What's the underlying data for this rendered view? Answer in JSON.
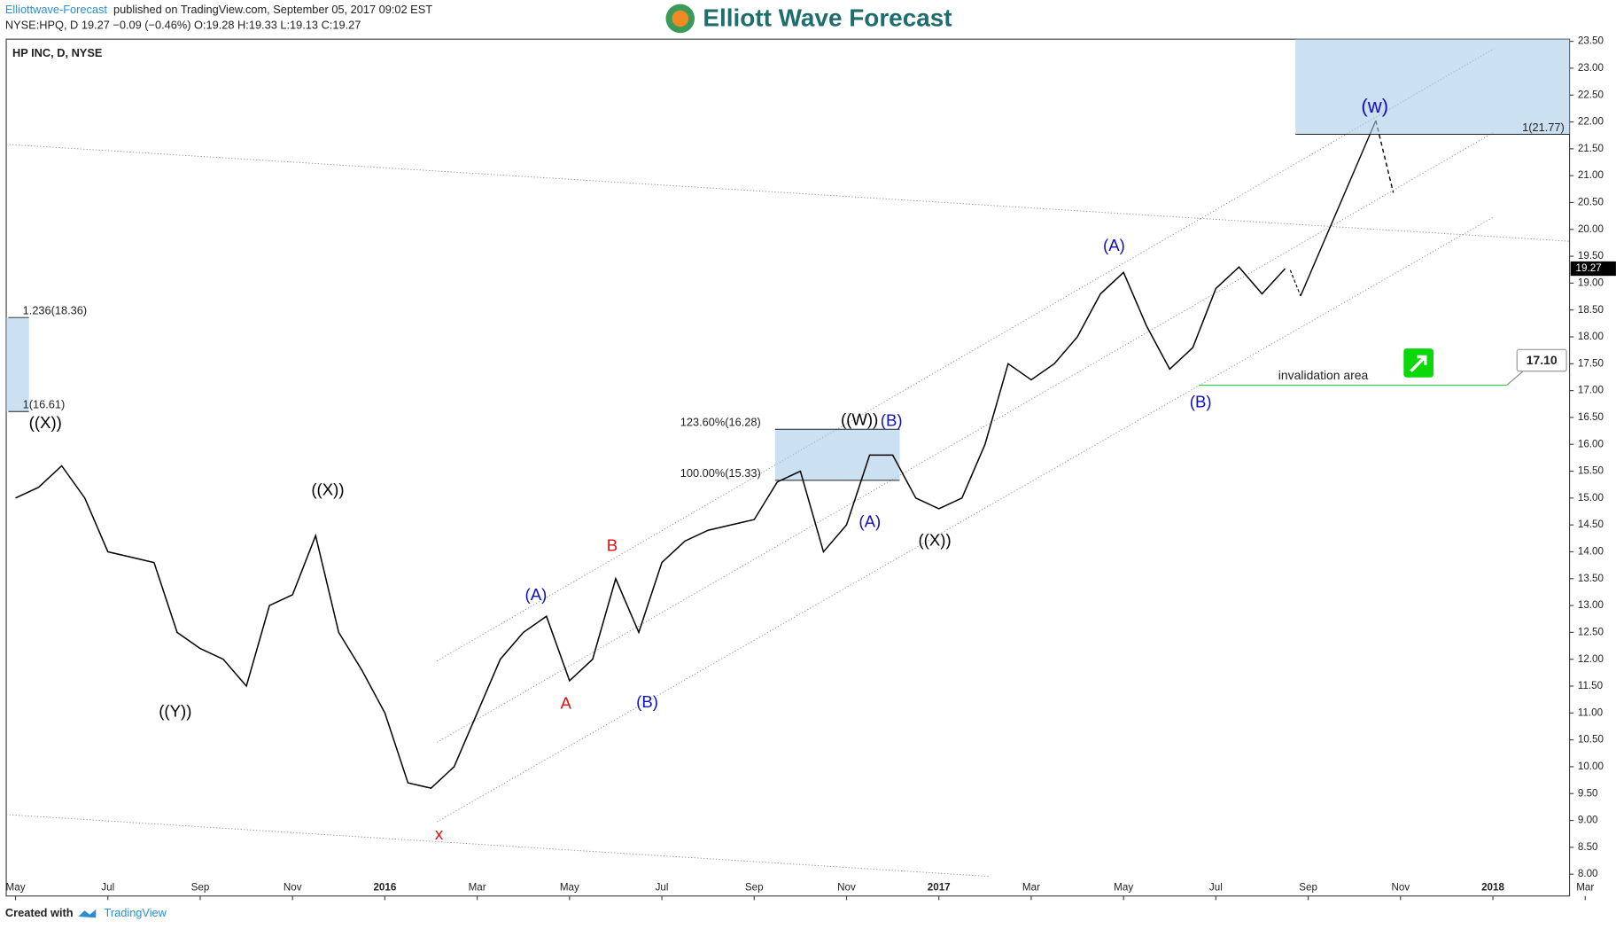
{
  "header": {
    "publisher": "Elliottwave-Forecast",
    "published": "published on TradingView.com, September 05, 2017 09:02 EST",
    "quote": "NYSE:HPQ, D  19.27  −0.09 (−0.46%)  O:19.28  H:19.33  L:19.13  C:19.27",
    "logo": "Elliott Wave Forecast"
  },
  "footer": {
    "created": "Created with",
    "brand": "TradingView"
  },
  "chart_data": {
    "type": "line",
    "title": "HP INC, D, NYSE",
    "categories": [
      "May",
      null,
      null,
      null,
      "Jul",
      null,
      null,
      null,
      "Sep",
      null,
      null,
      null,
      "Nov",
      null,
      null,
      null,
      "2016",
      null,
      null,
      null,
      "Mar",
      null,
      null,
      null,
      "May",
      null,
      null,
      null,
      "Jul",
      null,
      null,
      null,
      "Sep",
      null,
      null,
      null,
      "Nov",
      null,
      null,
      null,
      "2017",
      null,
      null,
      null,
      "Mar",
      null,
      null,
      null,
      "May",
      null,
      null,
      null,
      "Jul",
      null,
      null,
      null,
      "Sep",
      null,
      null,
      null,
      "Nov",
      null,
      null,
      null,
      "2018",
      null,
      null,
      null,
      "Mar",
      null
    ],
    "series": [
      {
        "name": "HPQ",
        "color": "#000000",
        "values": [
          15.0,
          15.2,
          15.6,
          15.0,
          14.0,
          13.9,
          13.8,
          12.5,
          12.2,
          12.0,
          11.5,
          13.0,
          13.2,
          14.3,
          12.5,
          11.8,
          11.0,
          9.7,
          9.6,
          10.0,
          11.0,
          12.0,
          12.5,
          12.8,
          11.6,
          12.0,
          13.5,
          12.5,
          13.8,
          14.2,
          14.4,
          14.5,
          14.6,
          15.3,
          15.5,
          14.0,
          14.5,
          15.8,
          15.8,
          15.0,
          14.8,
          15.0,
          16.0,
          17.5,
          17.2,
          17.5,
          18.0,
          18.8,
          19.2,
          18.2,
          17.4,
          17.8,
          18.9,
          19.3,
          18.8,
          19.27,
          null,
          null,
          null,
          null,
          null,
          null,
          null,
          null,
          null,
          null,
          null,
          null,
          null,
          null
        ]
      }
    ],
    "ylim": [
      7.92,
      23.54
    ],
    "yticks": [
      {
        "value": 8,
        "label": "8.00"
      },
      {
        "value": 8.5,
        "label": "8.50"
      },
      {
        "value": 9,
        "label": "9.00"
      },
      {
        "value": 9.5,
        "label": "9.50"
      },
      {
        "value": 10,
        "label": "10.00"
      },
      {
        "value": 10.5,
        "label": "10.50"
      },
      {
        "value": 11,
        "label": "11.00"
      },
      {
        "value": 11.5,
        "label": "11.50"
      },
      {
        "value": 12,
        "label": "12.00"
      },
      {
        "value": 12.5,
        "label": "12.50"
      },
      {
        "value": 13,
        "label": "13.00"
      },
      {
        "value": 13.5,
        "label": "13.50"
      },
      {
        "value": 14,
        "label": "14.00"
      },
      {
        "value": 14.5,
        "label": "14.50"
      },
      {
        "value": 15,
        "label": "15.00"
      },
      {
        "value": 15.5,
        "label": "15.50"
      },
      {
        "value": 16,
        "label": "16.00"
      },
      {
        "value": 16.5,
        "label": "16.50"
      },
      {
        "value": 17,
        "label": "17.00"
      },
      {
        "value": 17.5,
        "label": "17.50"
      },
      {
        "value": 18,
        "label": "18.00"
      },
      {
        "value": 18.5,
        "label": "18.50"
      },
      {
        "value": 19,
        "label": "19.00"
      },
      {
        "value": 19.5,
        "label": "19.50"
      },
      {
        "value": 20,
        "label": "20.00"
      },
      {
        "value": 20.5,
        "label": "20.50"
      },
      {
        "value": 21,
        "label": "21.00"
      },
      {
        "value": 21.5,
        "label": "21.50"
      },
      {
        "value": 22,
        "label": "22.00"
      },
      {
        "value": 22.5,
        "label": "22.50"
      },
      {
        "value": 23,
        "label": "23.00"
      },
      {
        "value": 23.5,
        "label": "23.50"
      }
    ],
    "grid": false,
    "last_price_label": "19.27",
    "fib_levels": [
      {
        "value": 18.36,
        "label": "1.236(18.36)"
      },
      {
        "value": 16.61,
        "label": "1(16.61)"
      },
      {
        "value": 16.28,
        "label": "123.60%(16.28)"
      },
      {
        "value": 15.33,
        "label": "100.00%(15.33)"
      },
      {
        "value": 21.77,
        "label": "1(21.77)"
      }
    ],
    "invalidation": {
      "value": 17.1,
      "label": "17.10",
      "text": "invalidation area"
    },
    "wave_labels": [
      {
        "text": "((X))",
        "color": "#000000"
      },
      {
        "text": "((X))",
        "color": "#000000"
      },
      {
        "text": "((Y))",
        "color": "#000000"
      },
      {
        "text": "x",
        "color": "#e01010"
      },
      {
        "text": "(A)",
        "color": "#1010c0"
      },
      {
        "text": "B",
        "color": "#e01010"
      },
      {
        "text": "A",
        "color": "#e01010"
      },
      {
        "text": "(B)",
        "color": "#1010c0"
      },
      {
        "text": "((W))",
        "color": "#000000"
      },
      {
        "text": "(B)",
        "color": "#1010c0"
      },
      {
        "text": "(A)",
        "color": "#1010c0"
      },
      {
        "text": "((X))",
        "color": "#000000"
      },
      {
        "text": "(A)",
        "color": "#1010c0"
      },
      {
        "text": "(B)",
        "color": "#1010c0"
      },
      {
        "text": "(w)",
        "color": "#1010c0"
      }
    ]
  }
}
